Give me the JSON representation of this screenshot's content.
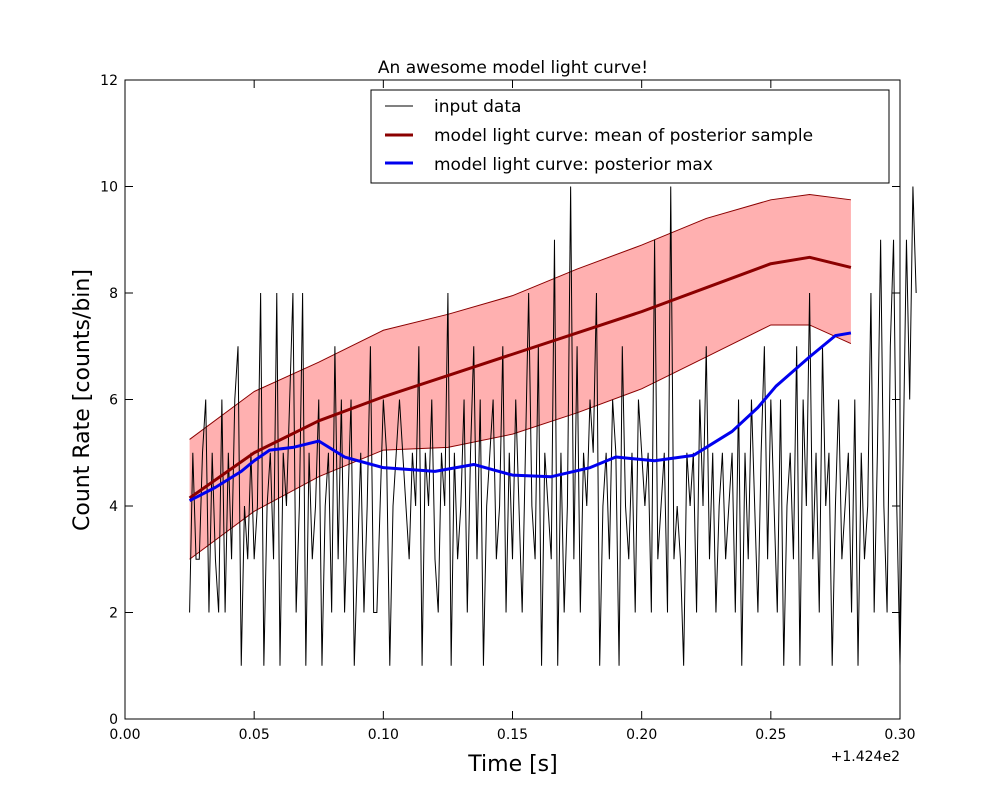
{
  "chart_data": {
    "type": "line",
    "title": "An awesome model light curve!",
    "xlabel": "Time [s]",
    "ylabel": "Count Rate [counts/bin]",
    "x_offset_label": "+1.424e2",
    "xlim": [
      0.0,
      0.3
    ],
    "ylim": [
      0,
      12
    ],
    "xticks": [
      "0.00",
      "0.05",
      "0.10",
      "0.15",
      "0.20",
      "0.25",
      "0.30"
    ],
    "yticks": [
      "0",
      "2",
      "4",
      "6",
      "8",
      "10",
      "12"
    ],
    "grid": false,
    "legend_position": "top-right",
    "series": [
      {
        "name": "input data",
        "color": "#000000",
        "style": "thin-line",
        "x_start": 0.025,
        "x_step": 0.00125,
        "values": [
          2,
          5,
          3,
          3,
          5,
          6,
          2,
          5,
          3,
          2,
          6,
          2,
          5,
          3,
          6,
          7,
          1,
          4,
          3,
          5,
          3,
          4,
          8,
          1,
          4,
          5,
          3,
          8,
          1,
          5,
          4,
          6,
          8,
          2,
          4,
          8,
          1,
          5,
          3,
          4,
          6,
          1,
          4,
          5,
          2,
          7,
          3,
          6,
          2,
          4,
          6,
          1,
          3,
          5,
          2,
          4,
          7,
          2,
          2,
          4,
          6,
          5,
          1,
          4,
          5,
          6,
          5,
          4,
          3,
          5,
          4,
          7,
          1,
          5,
          4,
          6,
          3,
          2,
          5,
          4,
          8,
          1,
          5,
          3,
          4,
          6,
          2,
          5,
          7,
          3,
          6,
          1,
          4,
          5,
          6,
          3,
          4,
          7,
          2,
          5,
          3,
          6,
          4,
          2,
          5,
          8,
          4,
          3,
          7,
          1,
          5,
          4,
          3,
          9,
          1,
          5,
          2,
          4,
          10,
          3,
          7,
          2,
          5,
          4,
          6,
          5,
          8,
          1,
          4,
          5,
          3,
          6,
          5,
          1,
          7,
          4,
          3,
          5,
          2,
          6,
          5,
          4,
          5,
          2,
          9,
          3,
          4,
          5,
          2,
          10,
          3,
          4,
          3,
          1,
          5,
          4,
          5,
          2,
          6,
          4,
          7,
          3,
          5,
          2,
          4,
          5,
          3,
          4,
          5,
          2,
          6,
          1,
          5,
          3,
          6,
          4,
          2,
          5,
          7,
          3,
          6,
          4,
          2,
          6,
          1,
          4,
          5,
          3,
          7,
          1,
          6,
          4,
          8,
          3,
          5,
          2,
          7,
          4,
          5,
          1,
          4,
          6,
          3,
          4,
          5,
          2,
          6,
          1,
          5,
          3,
          4,
          8,
          2,
          5,
          9,
          4,
          2,
          7,
          9,
          4,
          1,
          5,
          9,
          6,
          10,
          8
        ]
      },
      {
        "name": "model light curve: mean of posterior sample",
        "color": "#8b0000",
        "style": "thick-line",
        "x": [
          0.025,
          0.05,
          0.075,
          0.1,
          0.125,
          0.15,
          0.175,
          0.2,
          0.225,
          0.25,
          0.265,
          0.281
        ],
        "values": [
          4.15,
          5.0,
          5.6,
          6.05,
          6.45,
          6.85,
          7.25,
          7.65,
          8.1,
          8.55,
          8.67,
          8.48
        ]
      },
      {
        "name": "model light curve: posterior max",
        "color": "#0000ee",
        "style": "thick-line",
        "x": [
          0.025,
          0.035,
          0.045,
          0.05,
          0.056,
          0.065,
          0.075,
          0.085,
          0.1,
          0.12,
          0.135,
          0.15,
          0.165,
          0.18,
          0.19,
          0.205,
          0.22,
          0.235,
          0.245,
          0.252,
          0.265,
          0.275,
          0.281
        ],
        "values": [
          4.1,
          4.35,
          4.65,
          4.85,
          5.05,
          5.1,
          5.22,
          4.92,
          4.72,
          4.65,
          4.78,
          4.58,
          4.55,
          4.72,
          4.92,
          4.85,
          4.95,
          5.4,
          5.85,
          6.25,
          6.8,
          7.2,
          7.25
        ]
      }
    ],
    "band": {
      "color": "#ff6f6f",
      "edge_color": "#8b0000",
      "x": [
        0.025,
        0.05,
        0.075,
        0.1,
        0.125,
        0.15,
        0.175,
        0.2,
        0.225,
        0.25,
        0.265,
        0.281
      ],
      "upper": [
        5.25,
        6.15,
        6.7,
        7.3,
        7.6,
        7.95,
        8.45,
        8.9,
        9.4,
        9.75,
        9.85,
        9.75
      ],
      "lower": [
        3.0,
        3.9,
        4.55,
        5.05,
        5.1,
        5.35,
        5.75,
        6.2,
        6.8,
        7.4,
        7.4,
        7.05
      ]
    }
  }
}
